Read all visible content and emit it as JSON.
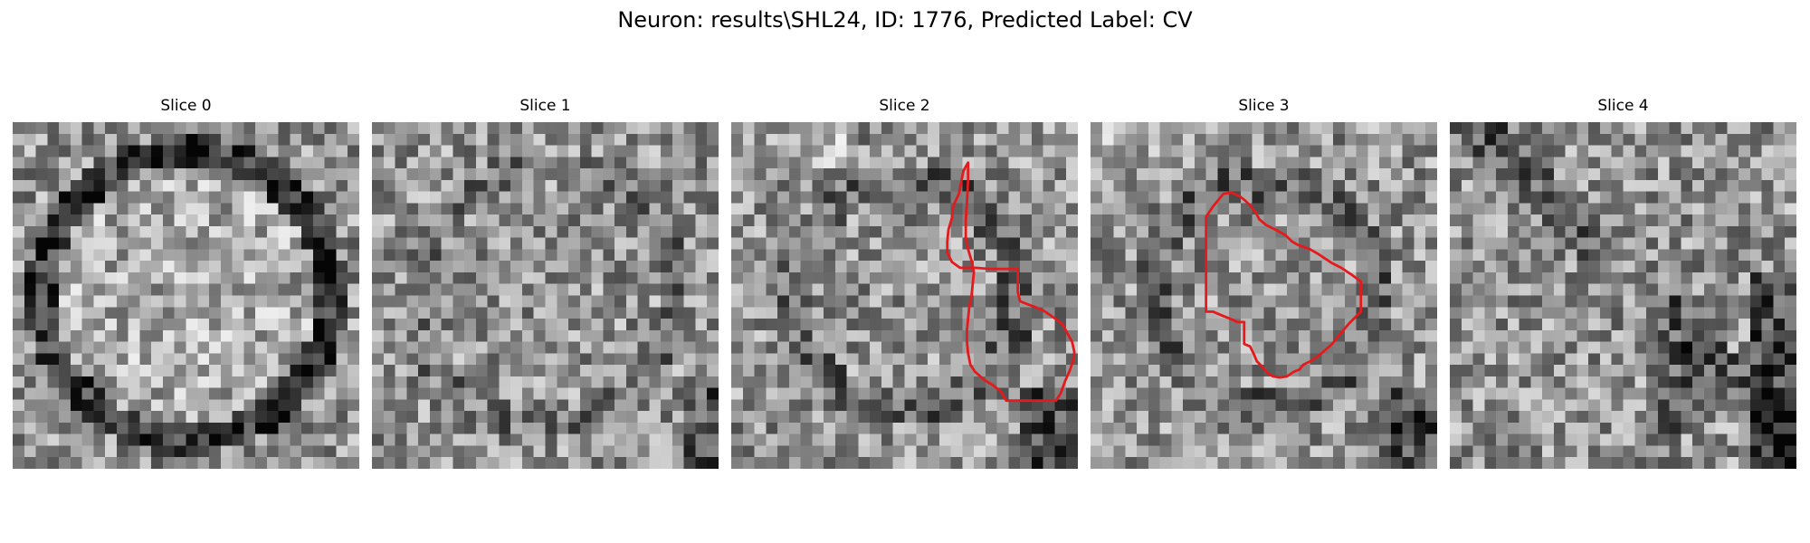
{
  "figure": {
    "suptitle": "Neuron: results\\SHL24, ID: 1776, Predicted Label: CV"
  },
  "panels": [
    {
      "title": "Slice 0",
      "has_outline": false,
      "ring": "strong",
      "seed": 11
    },
    {
      "title": "Slice 1",
      "has_outline": false,
      "ring": "faint",
      "seed": 23
    },
    {
      "title": "Slice 2",
      "has_outline": true,
      "ring": "outline",
      "seed": 37
    },
    {
      "title": "Slice 3",
      "has_outline": true,
      "ring": "outline",
      "seed": 51
    },
    {
      "title": "Slice 4",
      "has_outline": false,
      "ring": "cross",
      "seed": 67
    }
  ],
  "colors": {
    "background": "#ffffff",
    "outline": "#e41a1c",
    "colormap": "gray"
  }
}
